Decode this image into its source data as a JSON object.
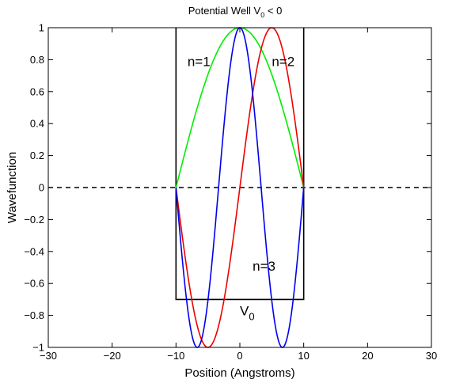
{
  "chart_data": {
    "type": "line",
    "title": {
      "prefix": "Potential Well V",
      "sub": "0",
      "suffix": " < 0"
    },
    "xlabel": "Position (Angstroms)",
    "ylabel": "Wavefunction",
    "xlim": [
      -30,
      30
    ],
    "ylim": [
      -1,
      1
    ],
    "xticks": [
      -30,
      -20,
      -10,
      0,
      10,
      20,
      30
    ],
    "yticks": [
      -1,
      -0.8,
      -0.6,
      -0.4,
      -0.2,
      0,
      0.2,
      0.4,
      0.6,
      0.8,
      1
    ],
    "xtick_labels": [
      "−30",
      "−20",
      "−10",
      "0",
      "10",
      "20",
      "30"
    ],
    "ytick_labels": [
      "−1",
      "−0.8",
      "−0.6",
      "−0.4",
      "−0.2",
      "0",
      "0.2",
      "0.4",
      "0.6",
      "0.8",
      "1"
    ],
    "grid": false,
    "well": {
      "x": [
        -10,
        -10,
        10,
        10
      ],
      "y": [
        1,
        -0.7,
        -0.7,
        1
      ],
      "color": "#000000"
    },
    "zero_line": {
      "y": 0,
      "style": "dashed",
      "color": "#000000"
    },
    "series": [
      {
        "label": "n=1",
        "color": "#00ee00",
        "x": [
          -10,
          -8,
          -6,
          -4,
          -2,
          0,
          2,
          4,
          6,
          8,
          10
        ],
        "y": [
          0,
          0.309,
          0.588,
          0.809,
          0.951,
          1,
          0.951,
          0.809,
          0.588,
          0.309,
          0
        ]
      },
      {
        "label": "n=2",
        "color": "#ee0000",
        "x": [
          -10,
          -9,
          -8,
          -7,
          -6,
          -5,
          -4,
          -3,
          -2,
          -1,
          0,
          1,
          2,
          3,
          4,
          5,
          6,
          7,
          8,
          9,
          10
        ],
        "y": [
          0,
          -0.309,
          -0.588,
          -0.809,
          -0.951,
          -1,
          -0.951,
          -0.809,
          -0.588,
          -0.309,
          0,
          0.309,
          0.588,
          0.809,
          0.951,
          1,
          0.951,
          0.809,
          0.588,
          0.309,
          0
        ]
      },
      {
        "label": "n=3",
        "color": "#0000ee",
        "x": [
          -10,
          -9,
          -8,
          -7,
          -6,
          -5,
          -4,
          -3,
          -2,
          -1,
          0,
          1,
          2,
          3,
          4,
          5,
          6,
          7,
          8,
          9,
          10
        ],
        "y": [
          0,
          -0.454,
          -0.809,
          -0.988,
          -0.951,
          -0.707,
          -0.309,
          0.156,
          0.588,
          0.891,
          1,
          0.891,
          0.588,
          0.156,
          -0.309,
          -0.707,
          -0.951,
          -0.988,
          -0.809,
          -0.454,
          0
        ]
      }
    ],
    "annotations": [
      {
        "text": "n=1",
        "x": -8.2,
        "y": 0.76
      },
      {
        "text": "n=2",
        "x": 5,
        "y": 0.76
      },
      {
        "text": "n=3",
        "x": 2,
        "y": -0.52
      },
      {
        "text": "V",
        "sub": "0",
        "x": 0,
        "y": -0.8
      }
    ]
  }
}
